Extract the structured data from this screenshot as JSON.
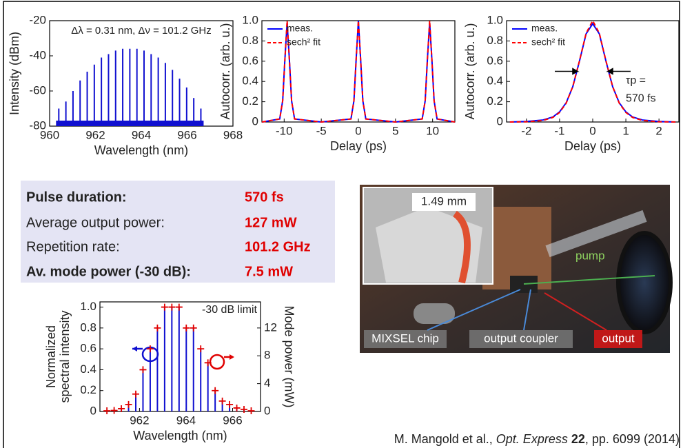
{
  "chart_data": [
    {
      "type": "stem",
      "annotation": "Δλ = 0.31 nm, Δν = 101.2 GHz",
      "x": [
        960.4,
        960.71,
        961.02,
        961.33,
        961.64,
        961.95,
        962.26,
        962.57,
        962.88,
        963.19,
        963.5,
        963.81,
        964.12,
        964.43,
        964.74,
        965.05,
        965.36,
        965.67,
        965.98,
        966.29,
        966.6
      ],
      "values": [
        -70,
        -66,
        -60,
        -54,
        -49,
        -45,
        -41,
        -39,
        -37,
        -36,
        -36,
        -36,
        -37,
        -39,
        -41,
        -44,
        -48,
        -53,
        -58,
        -64,
        -70
      ],
      "color": "#1010d0",
      "xlim": [
        960,
        968
      ],
      "xticks": [
        960,
        962,
        964,
        966,
        968
      ],
      "ylim": [
        -80,
        -20
      ],
      "yticks": [
        -80,
        -60,
        -40,
        -20
      ],
      "xlabel": "Wavelength (nm)",
      "ylabel": "Intensity (dBm)"
    },
    {
      "type": "line",
      "x": [
        -13,
        -10.6,
        -10.2,
        -9.9,
        -9.6,
        -9.3,
        -9,
        -8.6,
        -5,
        -1,
        -0.6,
        -0.3,
        0,
        0.3,
        0.6,
        1,
        5,
        8.6,
        9,
        9.3,
        9.6,
        9.9,
        10.2,
        10.6,
        13
      ],
      "series": [
        {
          "name": "meas.",
          "color": "#0000ff",
          "values": [
            0,
            0.03,
            0.21,
            0.62,
            0.98,
            0.62,
            0.21,
            0.03,
            0,
            0.03,
            0.21,
            0.62,
            1.0,
            0.62,
            0.21,
            0.03,
            0,
            0.03,
            0.21,
            0.62,
            0.98,
            0.62,
            0.21,
            0.03,
            0
          ]
        },
        {
          "name": "sech² fit",
          "color": "#ff0000",
          "dash": true,
          "values": [
            0,
            0.03,
            0.21,
            0.62,
            1.0,
            0.62,
            0.21,
            0.03,
            0,
            0.03,
            0.21,
            0.62,
            1.0,
            0.62,
            0.21,
            0.03,
            0,
            0.03,
            0.21,
            0.62,
            1.0,
            0.62,
            0.21,
            0.03,
            0
          ]
        }
      ],
      "xlim": [
        -13,
        13
      ],
      "xticks": [
        -10,
        -5,
        0,
        5,
        10
      ],
      "ylim": [
        0,
        1
      ],
      "yticks": [
        0,
        0.2,
        0.4,
        0.6,
        0.8,
        {
          "value": 1,
          "label": "1.0"
        }
      ],
      "xlabel": "Delay (ps)",
      "ylabel": "Autocorr. (arb. u.)",
      "legend": "upper left"
    },
    {
      "type": "line",
      "x": [
        -2.5,
        -2,
        -1.5,
        -1.2,
        -1,
        -0.8,
        -0.6,
        -0.4,
        -0.2,
        0,
        0.2,
        0.4,
        0.6,
        0.8,
        1,
        1.2,
        1.5,
        2,
        2.5
      ],
      "series": [
        {
          "name": "meas.",
          "color": "#0000ff",
          "values": [
            0,
            0.005,
            0.02,
            0.05,
            0.1,
            0.19,
            0.35,
            0.6,
            0.87,
            0.97,
            0.87,
            0.6,
            0.35,
            0.19,
            0.1,
            0.05,
            0.02,
            0.005,
            0
          ]
        },
        {
          "name": "sech² fit",
          "color": "#ff0000",
          "dash": true,
          "values": [
            0,
            0.002,
            0.015,
            0.045,
            0.094,
            0.186,
            0.351,
            0.603,
            0.875,
            1,
            0.875,
            0.603,
            0.351,
            0.186,
            0.094,
            0.045,
            0.015,
            0.002,
            0
          ]
        }
      ],
      "xlim": [
        -2.6,
        2.6
      ],
      "xticks": [
        -2,
        -1,
        0,
        1,
        2
      ],
      "ylim": [
        0,
        1
      ],
      "yticks": [
        0,
        0.2,
        0.4,
        0.6,
        0.8,
        {
          "value": 1,
          "label": "1.0"
        }
      ],
      "xlabel": "Delay (ps)",
      "ylabel": "Autocorr. (arb. u.)",
      "legend": "upper left",
      "annotations": [
        "τp =",
        "570 fs"
      ]
    },
    {
      "type": "combo",
      "x": [
        960.6,
        960.91,
        961.22,
        961.53,
        961.84,
        962.15,
        962.46,
        962.77,
        963.08,
        963.39,
        963.7,
        964.01,
        964.32,
        964.63,
        964.94,
        965.25,
        965.56,
        965.87,
        966.18,
        966.49,
        966.8
      ],
      "series": [
        {
          "color": "#1010d0",
          "style": "stem",
          "values": [
            0.01,
            0.01,
            0.03,
            0.07,
            0.17,
            0.4,
            0.6,
            0.8,
            1,
            1,
            1,
            0.8,
            0.8,
            0.6,
            0.47,
            0.2,
            0.1,
            0.07,
            0.03,
            0.02,
            0.01
          ]
        },
        {
          "color": "#e00000",
          "style": "plus",
          "axis": "y2",
          "values": [
            0.1,
            0.15,
            0.4,
            1,
            2.5,
            6,
            9,
            12,
            15,
            15,
            15,
            12,
            12,
            9,
            7,
            3,
            1.5,
            1,
            0.5,
            0.3,
            0.1
          ]
        }
      ],
      "xlim": [
        960.3,
        967.2
      ],
      "xticks": [
        962,
        964,
        966
      ],
      "ylim": [
        0,
        1.05
      ],
      "yticks": [
        0,
        0.2,
        0.4,
        0.6,
        0.8,
        {
          "value": 1,
          "label": "1.0"
        }
      ],
      "y2lim": [
        0,
        15.75
      ],
      "y2ticks": [
        0,
        4,
        8,
        12
      ],
      "xlabel": "Wavelength (nm)",
      "ylabel": [
        "Normalized",
        "spectral intensity"
      ],
      "y2label": "Mode power (mW)",
      "annotation": "-30 dB limit"
    }
  ],
  "summary": {
    "rows": [
      [
        "Pulse duration:",
        "570 fs"
      ],
      [
        "Average output power:",
        "127 mW"
      ],
      [
        "Repetition rate:",
        "101.2 GHz"
      ],
      [
        "Av. mode power (-30 dB):",
        "7.5 mW"
      ]
    ]
  },
  "photo": {
    "labels": [
      "1.49 mm",
      "pump",
      "MIXSEL chip",
      "output coupler",
      "output"
    ]
  },
  "citation": {
    "authors": "M. Mangold et al., ",
    "journal": "Opt. Express",
    "volume": "22",
    "pages": ", pp. 6099 (2014)"
  }
}
